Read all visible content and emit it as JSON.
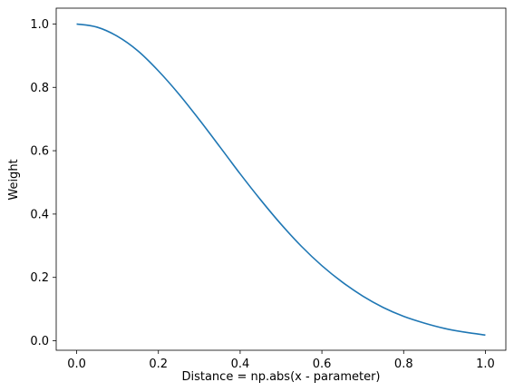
{
  "chart_data": {
    "type": "line",
    "title": "",
    "xlabel": "Distance = np.abs(x - parameter)",
    "ylabel": "Weight",
    "xlim": [
      -0.05,
      1.05
    ],
    "ylim": [
      -0.03,
      1.05
    ],
    "x_ticks": [
      0.0,
      0.2,
      0.4,
      0.6,
      0.8,
      1.0
    ],
    "x_tick_labels": [
      "0.0",
      "0.2",
      "0.4",
      "0.6",
      "0.8",
      "1.0"
    ],
    "y_ticks": [
      0.0,
      0.2,
      0.4,
      0.6,
      0.8,
      1.0
    ],
    "y_tick_labels": [
      "0.0",
      "0.2",
      "0.4",
      "0.6",
      "0.8",
      "1.0"
    ],
    "grid": false,
    "legend": "none",
    "line_color": "#1f77b4",
    "series": [
      {
        "x": [
          0.0,
          0.05,
          0.1,
          0.15,
          0.2,
          0.25,
          0.3,
          0.35,
          0.4,
          0.45,
          0.5,
          0.55,
          0.6,
          0.65,
          0.7,
          0.75,
          0.8,
          0.85,
          0.9,
          0.95,
          1.0
        ],
        "y": [
          1.0,
          0.99,
          0.961,
          0.915,
          0.852,
          0.779,
          0.698,
          0.613,
          0.527,
          0.445,
          0.368,
          0.298,
          0.237,
          0.185,
          0.141,
          0.105,
          0.077,
          0.056,
          0.039,
          0.027,
          0.018
        ]
      }
    ]
  }
}
